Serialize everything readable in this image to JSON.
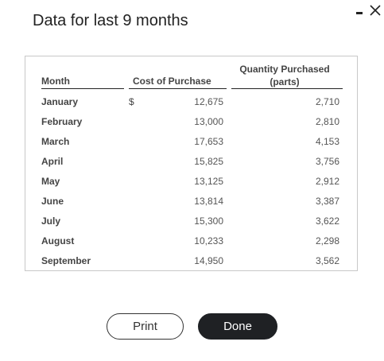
{
  "dialog": {
    "title": "Data for last 9 months"
  },
  "window_controls": {
    "minimize_icon": "minimize-icon",
    "close_icon": "close-icon"
  },
  "table": {
    "headers": {
      "month": "Month",
      "cost": "Cost of Purchase",
      "quantity_line1": "Quantity Purchased",
      "quantity_line2": "(parts)"
    },
    "currency_symbol": "$",
    "rows": [
      {
        "month": "January",
        "cost": "12,675",
        "quantity": "2,710"
      },
      {
        "month": "February",
        "cost": "13,000",
        "quantity": "2,810"
      },
      {
        "month": "March",
        "cost": "17,653",
        "quantity": "4,153"
      },
      {
        "month": "April",
        "cost": "15,825",
        "quantity": "3,756"
      },
      {
        "month": "May",
        "cost": "13,125",
        "quantity": "2,912"
      },
      {
        "month": "June",
        "cost": "13,814",
        "quantity": "3,387"
      },
      {
        "month": "July",
        "cost": "15,300",
        "quantity": "3,622"
      },
      {
        "month": "August",
        "cost": "10,233",
        "quantity": "2,298"
      },
      {
        "month": "September",
        "cost": "14,950",
        "quantity": "3,562"
      }
    ]
  },
  "buttons": {
    "print": "Print",
    "done": "Done"
  }
}
